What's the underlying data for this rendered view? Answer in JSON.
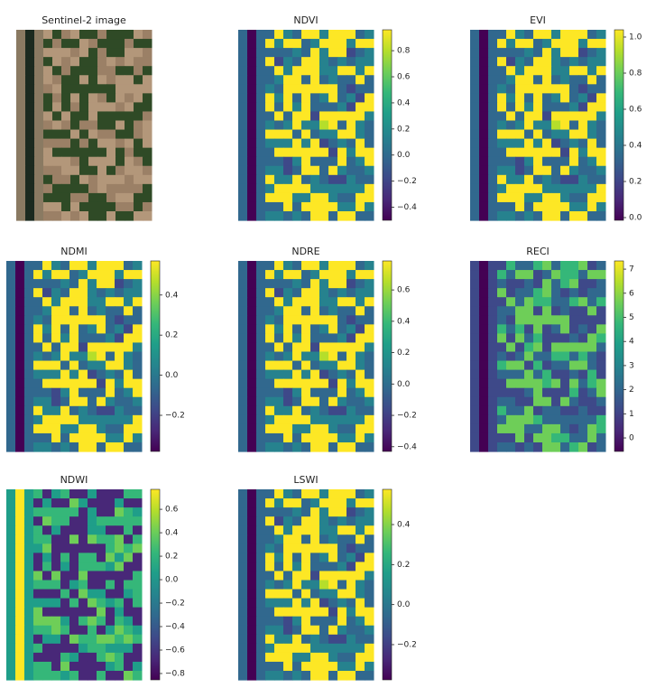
{
  "chart_data": [
    {
      "type": "image",
      "title": "Sentinel-2 image"
    },
    {
      "type": "image",
      "title": "NDVI",
      "colormap": "viridis",
      "colorbar_lim": [
        -0.5,
        0.96
      ],
      "colorbar_ticks": [
        {
          "value": 0.8,
          "label": "0.8"
        },
        {
          "value": 0.6,
          "label": "0.6"
        },
        {
          "value": 0.4,
          "label": "0.4"
        },
        {
          "value": 0.2,
          "label": "0.2"
        },
        {
          "value": 0,
          "label": "0.0"
        },
        {
          "value": -0.2,
          "label": "−0.2"
        },
        {
          "value": -0.4,
          "label": "−0.4"
        }
      ]
    },
    {
      "type": "image",
      "title": "EVI",
      "colormap": "viridis",
      "colorbar_lim": [
        -0.015,
        1.04
      ],
      "colorbar_ticks": [
        {
          "value": 1,
          "label": "1.0"
        },
        {
          "value": 0.8,
          "label": "0.8"
        },
        {
          "value": 0.6,
          "label": "0.6"
        },
        {
          "value": 0.4,
          "label": "0.4"
        },
        {
          "value": 0.2,
          "label": "0.2"
        },
        {
          "value": 0,
          "label": "0.0"
        }
      ]
    },
    {
      "type": "image",
      "title": "NDMI",
      "colormap": "viridis",
      "colorbar_lim": [
        -0.38,
        0.57
      ],
      "colorbar_ticks": [
        {
          "value": 0.4,
          "label": "0.4"
        },
        {
          "value": 0.2,
          "label": "0.2"
        },
        {
          "value": 0,
          "label": "0.0"
        },
        {
          "value": -0.2,
          "label": "−0.2"
        }
      ]
    },
    {
      "type": "image",
      "title": "NDRE",
      "colormap": "viridis",
      "colorbar_lim": [
        -0.43,
        0.785
      ],
      "colorbar_ticks": [
        {
          "value": 0.6,
          "label": "0.6"
        },
        {
          "value": 0.4,
          "label": "0.4"
        },
        {
          "value": 0.2,
          "label": "0.2"
        },
        {
          "value": 0,
          "label": "0.0"
        },
        {
          "value": -0.2,
          "label": "−0.2"
        },
        {
          "value": -0.4,
          "label": "−0.4"
        }
      ]
    },
    {
      "type": "image",
      "title": "RECI",
      "colormap": "viridis",
      "colorbar_lim": [
        -0.56,
        7.34
      ],
      "colorbar_ticks": [
        7,
        6,
        5,
        4,
        3,
        2,
        1,
        0
      ]
    },
    {
      "type": "image",
      "title": "NDWI",
      "colormap": "viridis",
      "colorbar_lim": [
        -0.854,
        0.77
      ],
      "colorbar_ticks": [
        {
          "value": 0.6,
          "label": "0.6"
        },
        {
          "value": 0.4,
          "label": "0.4"
        },
        {
          "value": 0.2,
          "label": "0.2"
        },
        {
          "value": 0,
          "label": "0.0"
        },
        {
          "value": -0.2,
          "label": "−0.2"
        },
        {
          "value": -0.4,
          "label": "−0.4"
        },
        {
          "value": -0.6,
          "label": "−0.6"
        },
        {
          "value": -0.8,
          "label": "−0.8"
        }
      ]
    },
    {
      "type": "image",
      "title": "LSWI",
      "colormap": "viridis",
      "colorbar_lim": [
        -0.376,
        0.576
      ],
      "colorbar_ticks": [
        {
          "value": 0.4,
          "label": "0.4"
        },
        {
          "value": 0.2,
          "label": "0.2"
        },
        {
          "value": 0,
          "label": "0.0"
        },
        {
          "value": -0.2,
          "label": "−0.2"
        }
      ]
    }
  ]
}
